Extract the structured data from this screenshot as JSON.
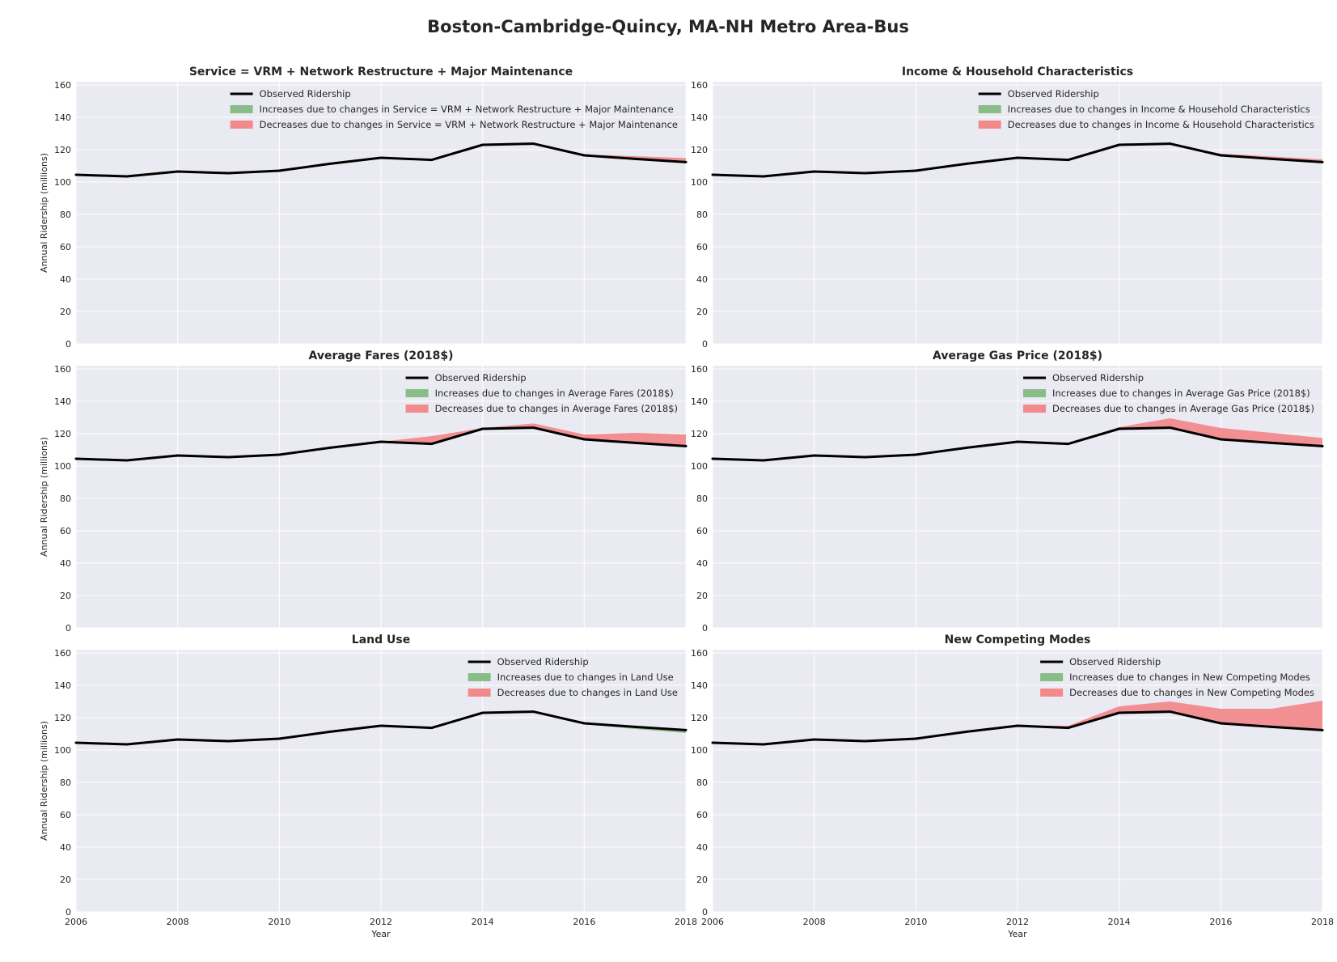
{
  "figure": {
    "title": "Boston-Cambridge-Quincy, MA-NH Metro Area-Bus"
  },
  "colors": {
    "panel_bg": "#EAEAF2",
    "grid": "#FFFFFF",
    "observed": "#000000",
    "increase": "#88BD88",
    "decrease": "#F28A8C"
  },
  "legend_labels": {
    "observed": "Observed Ridership"
  },
  "chart_data": [
    {
      "type": "area",
      "title": "Service = VRM + Network Restructure + Major Maintenance",
      "xlabel": "",
      "ylabel": "Annual Ridership (millions)",
      "xlim": [
        2006,
        2018
      ],
      "ylim": [
        0,
        162
      ],
      "xticks": [
        2006,
        2008,
        2010,
        2012,
        2014,
        2016,
        2018
      ],
      "yticks": [
        0,
        20,
        40,
        60,
        80,
        100,
        120,
        140,
        160
      ],
      "grid": true,
      "legend_position": "top-right",
      "x": [
        2006,
        2007,
        2008,
        2009,
        2010,
        2011,
        2012,
        2013,
        2014,
        2015,
        2016,
        2017,
        2018
      ],
      "observed": [
        104.5,
        103.5,
        106.5,
        105.5,
        107.0,
        111.3,
        115.0,
        113.7,
        123.0,
        123.7,
        116.5,
        114.3,
        112.3
      ],
      "decrease_upper": [
        104.5,
        103.5,
        106.5,
        105.5,
        107.0,
        111.3,
        115.0,
        113.7,
        123.7,
        124.5,
        117.0,
        116.0,
        114.8
      ],
      "increase_lower": [
        104.5,
        103.5,
        106.5,
        105.5,
        107.0,
        111.3,
        115.0,
        113.7,
        123.0,
        123.7,
        116.5,
        114.3,
        112.3
      ],
      "series": [
        {
          "name": "Observed Ridership",
          "values": [
            104.5,
            103.5,
            106.5,
            105.5,
            107.0,
            111.3,
            115.0,
            113.7,
            123.0,
            123.7,
            116.5,
            114.3,
            112.3
          ]
        },
        {
          "name": "Increases due to changes in Service = VRM + Network Restructure + Major Maintenance"
        },
        {
          "name": "Decreases due to changes in Service = VRM + Network Restructure + Major Maintenance"
        }
      ]
    },
    {
      "type": "area",
      "title": "Income & Household Characteristics",
      "xlabel": "",
      "ylabel": "",
      "xlim": [
        2006,
        2018
      ],
      "ylim": [
        0,
        162
      ],
      "xticks": [
        2006,
        2008,
        2010,
        2012,
        2014,
        2016,
        2018
      ],
      "yticks": [
        0,
        20,
        40,
        60,
        80,
        100,
        120,
        140,
        160
      ],
      "grid": true,
      "legend_position": "top-right",
      "x": [
        2006,
        2007,
        2008,
        2009,
        2010,
        2011,
        2012,
        2013,
        2014,
        2015,
        2016,
        2017,
        2018
      ],
      "observed": [
        104.5,
        103.5,
        106.5,
        105.5,
        107.0,
        111.3,
        115.0,
        113.7,
        123.0,
        123.7,
        116.5,
        114.3,
        112.3
      ],
      "decrease_upper": [
        104.5,
        103.5,
        106.5,
        105.5,
        107.0,
        111.3,
        115.0,
        113.7,
        123.0,
        123.7,
        117.5,
        115.8,
        114.0
      ],
      "increase_lower": [
        104.5,
        103.5,
        106.5,
        105.5,
        107.0,
        111.3,
        115.0,
        113.7,
        123.0,
        123.7,
        116.5,
        114.3,
        112.3
      ],
      "series": [
        {
          "name": "Observed Ridership",
          "values": [
            104.5,
            103.5,
            106.5,
            105.5,
            107.0,
            111.3,
            115.0,
            113.7,
            123.0,
            123.7,
            116.5,
            114.3,
            112.3
          ]
        },
        {
          "name": "Increases due to changes in Income & Household Characteristics"
        },
        {
          "name": "Decreases due to changes in Income & Household Characteristics"
        }
      ]
    },
    {
      "type": "area",
      "title": "Average Fares (2018$)",
      "xlabel": "",
      "ylabel": "Annual Ridership (millions)",
      "xlim": [
        2006,
        2018
      ],
      "ylim": [
        0,
        162
      ],
      "xticks": [
        2006,
        2008,
        2010,
        2012,
        2014,
        2016,
        2018
      ],
      "yticks": [
        0,
        20,
        40,
        60,
        80,
        100,
        120,
        140,
        160
      ],
      "grid": true,
      "legend_position": "top-right",
      "x": [
        2006,
        2007,
        2008,
        2009,
        2010,
        2011,
        2012,
        2013,
        2014,
        2015,
        2016,
        2017,
        2018
      ],
      "observed": [
        104.5,
        103.5,
        106.5,
        105.5,
        107.0,
        111.3,
        115.0,
        113.7,
        123.0,
        123.7,
        116.5,
        114.3,
        112.3
      ],
      "decrease_upper": [
        104.5,
        103.5,
        106.5,
        105.5,
        107.0,
        111.3,
        115.0,
        118.5,
        123.5,
        126.3,
        119.5,
        120.5,
        119.5
      ],
      "increase_lower": [
        104.5,
        103.5,
        106.5,
        105.5,
        107.0,
        111.3,
        115.0,
        113.7,
        123.0,
        123.7,
        116.5,
        114.3,
        112.3
      ],
      "series": [
        {
          "name": "Observed Ridership",
          "values": [
            104.5,
            103.5,
            106.5,
            105.5,
            107.0,
            111.3,
            115.0,
            113.7,
            123.0,
            123.7,
            116.5,
            114.3,
            112.3
          ]
        },
        {
          "name": "Increases due to changes in Average Fares (2018$)"
        },
        {
          "name": "Decreases due to changes in Average Fares (2018$)"
        }
      ]
    },
    {
      "type": "area",
      "title": "Average Gas Price (2018$)",
      "xlabel": "",
      "ylabel": "",
      "xlim": [
        2006,
        2018
      ],
      "ylim": [
        0,
        162
      ],
      "xticks": [
        2006,
        2008,
        2010,
        2012,
        2014,
        2016,
        2018
      ],
      "yticks": [
        0,
        20,
        40,
        60,
        80,
        100,
        120,
        140,
        160
      ],
      "grid": true,
      "legend_position": "top-right",
      "x": [
        2006,
        2007,
        2008,
        2009,
        2010,
        2011,
        2012,
        2013,
        2014,
        2015,
        2016,
        2017,
        2018
      ],
      "observed": [
        104.5,
        103.5,
        106.5,
        105.5,
        107.0,
        111.3,
        115.0,
        113.7,
        123.0,
        123.7,
        116.5,
        114.3,
        112.3
      ],
      "decrease_upper": [
        104.5,
        103.5,
        106.5,
        105.5,
        107.0,
        111.3,
        115.0,
        113.7,
        124.0,
        129.5,
        123.5,
        120.5,
        117.3
      ],
      "increase_lower": [
        104.5,
        103.5,
        106.5,
        105.5,
        107.0,
        111.3,
        115.0,
        113.7,
        123.0,
        123.7,
        116.5,
        114.3,
        112.3
      ],
      "series": [
        {
          "name": "Observed Ridership",
          "values": [
            104.5,
            103.5,
            106.5,
            105.5,
            107.0,
            111.3,
            115.0,
            113.7,
            123.0,
            123.7,
            116.5,
            114.3,
            112.3
          ]
        },
        {
          "name": "Increases due to changes in Average Gas Price (2018$)"
        },
        {
          "name": "Decreases due to changes in Average Gas Price (2018$)"
        }
      ]
    },
    {
      "type": "area",
      "title": "Land Use",
      "xlabel": "Year",
      "ylabel": "Annual Ridership (millions)",
      "xlim": [
        2006,
        2018
      ],
      "ylim": [
        0,
        162
      ],
      "xticks": [
        2006,
        2008,
        2010,
        2012,
        2014,
        2016,
        2018
      ],
      "yticks": [
        0,
        20,
        40,
        60,
        80,
        100,
        120,
        140,
        160
      ],
      "grid": true,
      "legend_position": "top-right",
      "x": [
        2006,
        2007,
        2008,
        2009,
        2010,
        2011,
        2012,
        2013,
        2014,
        2015,
        2016,
        2017,
        2018
      ],
      "observed": [
        104.5,
        103.5,
        106.5,
        105.5,
        107.0,
        111.3,
        115.0,
        113.7,
        123.0,
        123.7,
        116.5,
        114.3,
        112.3
      ],
      "decrease_upper": [
        104.5,
        103.5,
        106.5,
        105.5,
        107.0,
        111.3,
        115.0,
        113.7,
        123.0,
        123.7,
        116.5,
        114.3,
        112.3
      ],
      "increase_lower": [
        104.5,
        103.5,
        106.5,
        105.5,
        107.0,
        111.3,
        115.0,
        113.7,
        123.0,
        123.7,
        116.0,
        113.0,
        110.5
      ],
      "series": [
        {
          "name": "Observed Ridership",
          "values": [
            104.5,
            103.5,
            106.5,
            105.5,
            107.0,
            111.3,
            115.0,
            113.7,
            123.0,
            123.7,
            116.5,
            114.3,
            112.3
          ]
        },
        {
          "name": "Increases due to changes in Land Use"
        },
        {
          "name": "Decreases due to changes in Land Use"
        }
      ]
    },
    {
      "type": "area",
      "title": "New Competing Modes",
      "xlabel": "Year",
      "ylabel": "",
      "xlim": [
        2006,
        2018
      ],
      "ylim": [
        0,
        162
      ],
      "xticks": [
        2006,
        2008,
        2010,
        2012,
        2014,
        2016,
        2018
      ],
      "yticks": [
        0,
        20,
        40,
        60,
        80,
        100,
        120,
        140,
        160
      ],
      "grid": true,
      "legend_position": "top-right",
      "x": [
        2006,
        2007,
        2008,
        2009,
        2010,
        2011,
        2012,
        2013,
        2014,
        2015,
        2016,
        2017,
        2018
      ],
      "observed": [
        104.5,
        103.5,
        106.5,
        105.5,
        107.0,
        111.3,
        115.0,
        113.7,
        123.0,
        123.7,
        116.5,
        114.3,
        112.3
      ],
      "decrease_upper": [
        104.5,
        103.5,
        106.5,
        105.5,
        107.0,
        111.3,
        115.0,
        115.0,
        127.0,
        130.0,
        125.5,
        125.5,
        130.5
      ],
      "increase_lower": [
        104.5,
        103.5,
        106.5,
        105.5,
        107.0,
        111.3,
        115.0,
        113.7,
        123.0,
        123.7,
        116.5,
        114.3,
        112.3
      ],
      "series": [
        {
          "name": "Observed Ridership",
          "values": [
            104.5,
            103.5,
            106.5,
            105.5,
            107.0,
            111.3,
            115.0,
            113.7,
            123.0,
            123.7,
            116.5,
            114.3,
            112.3
          ]
        },
        {
          "name": "Increases due to changes in New Competing Modes"
        },
        {
          "name": "Decreases due to changes in New Competing Modes"
        }
      ]
    }
  ]
}
